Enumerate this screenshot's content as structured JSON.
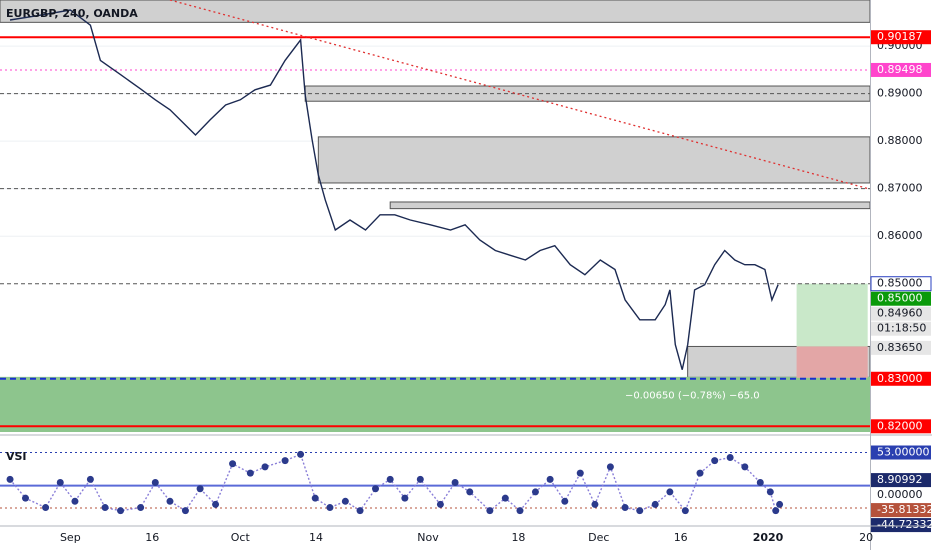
{
  "chart_data": [
    {
      "type": "line",
      "title": "EURGBP, 240, OANDA",
      "x": [
        -7.8,
        -3.9,
        0,
        2.6,
        3.9,
        6.5,
        9.1,
        11,
        12.9,
        14.9,
        16.2,
        18.1,
        20.1,
        22,
        23.9,
        25.9,
        27.8,
        29.8,
        30.4,
        31.3,
        32.1,
        33,
        34.3,
        36.2,
        38.2,
        40.1,
        42,
        44,
        46.6,
        49.2,
        51.1,
        53,
        55,
        56.9,
        58.9,
        60.8,
        62.7,
        64.7,
        66.6,
        68.6,
        70.5,
        71.8,
        73.7,
        75.7,
        77,
        77.6,
        78.3,
        79.2,
        79.9,
        80.8,
        82.1,
        83.4,
        84.7,
        86,
        87.3,
        88.6,
        89.9,
        90.8,
        91.6
      ],
      "series": [
        {
          "name": "EURGBP",
          "color": "#1c2a52",
          "values": [
            0.9055,
            0.9065,
            0.9076,
            0.9044,
            0.897,
            0.894,
            0.891,
            0.8887,
            0.8866,
            0.8834,
            0.8813,
            0.8845,
            0.8876,
            0.8887,
            0.8908,
            0.8918,
            0.897,
            0.9013,
            0.8897,
            0.8803,
            0.8729,
            0.8676,
            0.8613,
            0.8634,
            0.8613,
            0.8645,
            0.8645,
            0.8634,
            0.8624,
            0.8613,
            0.8624,
            0.8592,
            0.857,
            0.856,
            0.855,
            0.857,
            0.858,
            0.854,
            0.8519,
            0.855,
            0.853,
            0.8466,
            0.8424,
            0.8424,
            0.8456,
            0.8487,
            0.8372,
            0.8319,
            0.8372,
            0.8487,
            0.8498,
            0.854,
            0.857,
            0.855,
            0.854,
            0.854,
            0.853,
            0.8466,
            0.8498
          ]
        }
      ],
      "xlim": [
        -9.1,
        103.5
      ],
      "ylim": [
        0.8188,
        0.9097
      ],
      "xticks": [
        {
          "value": 0,
          "label": "Sep"
        },
        {
          "value": 10.6,
          "label": "16"
        },
        {
          "value": 22,
          "label": "Oct"
        },
        {
          "value": 31.8,
          "label": "14"
        },
        {
          "value": 46.3,
          "label": "Nov"
        },
        {
          "value": 58,
          "label": "18"
        },
        {
          "value": 68.4,
          "label": "Dec"
        },
        {
          "value": 79,
          "label": "16"
        },
        {
          "value": 90.3,
          "label": "2020"
        },
        {
          "value": 103,
          "label": "20"
        }
      ],
      "yticks": [
        {
          "value": 0.9,
          "label": "0.90000"
        },
        {
          "value": 0.89,
          "label": "0.89000"
        },
        {
          "value": 0.88,
          "label": "0.88000"
        },
        {
          "value": 0.87,
          "label": "0.87000"
        },
        {
          "value": 0.86,
          "label": "0.86000"
        }
      ],
      "zones": [
        {
          "from": 0.905,
          "to": 0.9097,
          "color": "#d0d0d0"
        },
        {
          "from": 0.8884,
          "to": 0.8916,
          "start": 30.4,
          "color": "#d0d0d0"
        },
        {
          "from": 0.8712,
          "to": 0.8809,
          "start": 32.1,
          "color": "#d0d0d0"
        },
        {
          "from": 0.8658,
          "to": 0.8672,
          "start": 41.4,
          "color": "#d0d0d0"
        },
        {
          "from": 0.8303,
          "to": 0.8368,
          "start": 79.9,
          "color": "#d0d0d0"
        },
        {
          "from": 0.8188,
          "to": 0.8304,
          "color": "#8dc58d"
        },
        {
          "from": 0.8368,
          "to": 0.85,
          "start": 94,
          "end": 103.2,
          "color": "#c9e8c9"
        },
        {
          "from": 0.8302,
          "to": 0.8368,
          "start": 94,
          "end": 103.2,
          "color": "#e3a6a6"
        }
      ],
      "levels": [
        {
          "value": 0.90187,
          "color": "#ff0000",
          "style": "solid"
        },
        {
          "value": 0.89498,
          "color": "#ff44cc",
          "style": "dotted"
        },
        {
          "value": 0.89,
          "color": "#555555",
          "style": "dashed"
        },
        {
          "value": 0.87,
          "color": "#555555",
          "style": "dashed"
        },
        {
          "value": 0.85,
          "color": "#555555",
          "style": "dashed"
        },
        {
          "value": 0.83,
          "color": "#1a2fd0",
          "style": "bold-dashed"
        },
        {
          "value": 0.82,
          "color": "#ff0000",
          "style": "solid"
        }
      ],
      "trendline": {
        "x": [
          12.9,
          103.5
        ],
        "values": [
          0.9097,
          0.8699
        ],
        "color": "#e03030"
      },
      "price_labels": [
        {
          "value": 0.90187,
          "label": "0.90187",
          "bg": "#ff0000",
          "fg": "#ffffff"
        },
        {
          "value": 0.89498,
          "label": "0.89498",
          "bg": "#ff44cc",
          "fg": "#ffffff"
        },
        {
          "value": 0.85,
          "label": "0.85000",
          "bg": "#ffffff",
          "fg": "#131722",
          "border": "#2a40c0"
        },
        {
          "value": 0.85,
          "label": "0.85000",
          "bg": "#0a9a0a",
          "fg": "#ffffff"
        },
        {
          "value": 0.8496,
          "label": "0.84960",
          "bg": "#e6e6e6",
          "fg": "#131722"
        },
        {
          "value": 0.8365,
          "label": "0.83650",
          "bg": "#e6e6e6",
          "fg": "#131722"
        },
        {
          "value": 0.83,
          "label": "0.83000",
          "bg": "#ff0000",
          "fg": "#ffffff"
        },
        {
          "value": 0.82,
          "label": "0.82000",
          "bg": "#ff0000",
          "fg": "#ffffff"
        }
      ],
      "countdown": "01:18:50",
      "annotation": {
        "text": "−0.00650 (−0.78%) −65.0",
        "x": 80.5,
        "value": 0.8265
      }
    },
    {
      "type": "line",
      "title": "VSI",
      "x": [
        -7.8,
        -5.8,
        -3.2,
        -1.3,
        0.6,
        2.6,
        4.5,
        6.5,
        9.1,
        11,
        12.9,
        14.9,
        16.8,
        18.8,
        21,
        23.3,
        25.2,
        27.8,
        29.8,
        31.7,
        33.6,
        35.6,
        37.5,
        39.5,
        41.4,
        43.3,
        45.3,
        47.9,
        49.8,
        51.7,
        54.3,
        56.3,
        58.2,
        60.2,
        62.1,
        64,
        66,
        67.9,
        69.9,
        71.8,
        73.7,
        75.7,
        77.6,
        79.6,
        81.5,
        83.4,
        85.4,
        87.3,
        89.3,
        90.6,
        91.3,
        91.8
      ],
      "series": [
        {
          "name": "VSI",
          "color": "#8a7fd8",
          "values": [
            10,
            -20,
            -35,
            5,
            -25,
            10,
            -35,
            -40,
            -35,
            5,
            -25,
            -40,
            -5,
            -30,
            35,
            20,
            30,
            40,
            50,
            -20,
            -35,
            -25,
            -40,
            -5,
            10,
            -20,
            10,
            -30,
            5,
            -10,
            -40,
            -20,
            -40,
            -10,
            10,
            -25,
            20,
            -30,
            30,
            -35,
            -40,
            -30,
            -10,
            -40,
            20,
            40,
            45,
            30,
            5,
            -10,
            -40,
            -30
          ]
        }
      ],
      "ylim": [
        -62.9,
        77.8
      ],
      "levels": [
        {
          "value": 53,
          "color": "#2a3fb0",
          "style": "dotted"
        },
        {
          "value": 0,
          "color": "#5a6ad8",
          "style": "solid"
        },
        {
          "value": -35.81332,
          "color": "#b5523b",
          "style": "dotted"
        }
      ],
      "price_labels": [
        {
          "value": 53,
          "label": "53.00000",
          "bg": "#2a3fb0",
          "fg": "#ffffff"
        },
        {
          "value": 8.90992,
          "label": "8.90992",
          "bg": "#1c2a6b",
          "fg": "#ffffff"
        },
        {
          "value": 0,
          "label": "0.00000",
          "bg": "#ffffff",
          "fg": "#131722"
        },
        {
          "value": -35.81332,
          "label": "-35.81332",
          "bg": "#b5523b",
          "fg": "#ffffff"
        },
        {
          "value": -44.72332,
          "label": "-44.72332",
          "bg": "#1c2a6b",
          "fg": "#ffffff"
        }
      ]
    }
  ]
}
